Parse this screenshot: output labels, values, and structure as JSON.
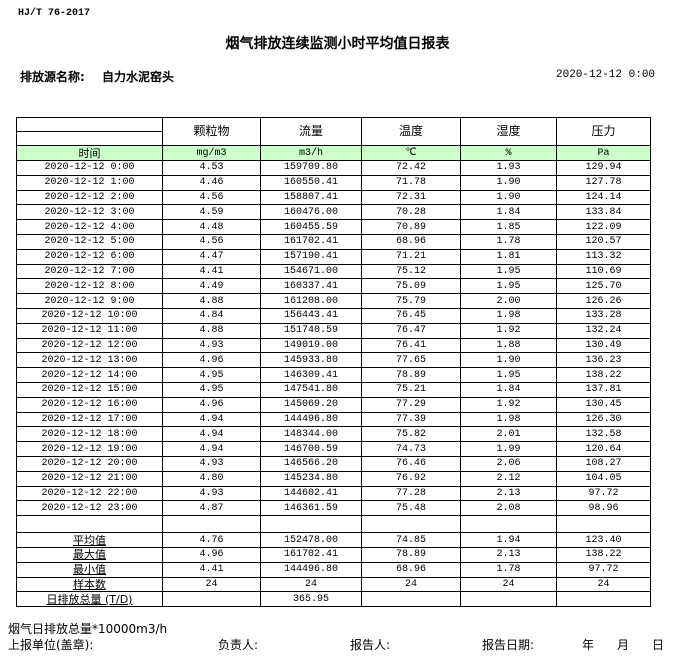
{
  "standard": "HJ/T  76-2017",
  "title": "烟气排放连续监测小时平均值日报表",
  "source_label": "排放源名称:",
  "source_value": "自力水泥窑头",
  "report_datetime": "2020-12-12 0:00",
  "columns": [
    {
      "name": "颗粒物",
      "unit": "mg/m3"
    },
    {
      "name": "流量",
      "unit": "m3/h"
    },
    {
      "name": "温度",
      "unit": "℃"
    },
    {
      "name": "湿度",
      "unit": "%"
    },
    {
      "name": "压力",
      "unit": "Pa"
    }
  ],
  "time_header": "时间",
  "rows": [
    [
      "2020-12-12 0:00",
      "4.53",
      "159709.80",
      "72.42",
      "1.93",
      "129.94"
    ],
    [
      "2020-12-12 1:00",
      "4.46",
      "160550.41",
      "71.78",
      "1.90",
      "127.78"
    ],
    [
      "2020-12-12 2:00",
      "4.56",
      "158807.41",
      "72.31",
      "1.90",
      "124.14"
    ],
    [
      "2020-12-12 3:00",
      "4.59",
      "160476.00",
      "70.28",
      "1.84",
      "133.84"
    ],
    [
      "2020-12-12 4:00",
      "4.48",
      "160455.59",
      "70.89",
      "1.85",
      "122.09"
    ],
    [
      "2020-12-12 5:00",
      "4.56",
      "161702.41",
      "68.96",
      "1.78",
      "120.57"
    ],
    [
      "2020-12-12 6:00",
      "4.47",
      "157190.41",
      "71.21",
      "1.81",
      "113.32"
    ],
    [
      "2020-12-12 7:00",
      "4.41",
      "154671.00",
      "75.12",
      "1.95",
      "110.69"
    ],
    [
      "2020-12-12 8:00",
      "4.49",
      "160337.41",
      "75.09",
      "1.95",
      "125.70"
    ],
    [
      "2020-12-12 9:00",
      "4.88",
      "161208.00",
      "75.79",
      "2.00",
      "126.26"
    ],
    [
      "2020-12-12 10:00",
      "4.84",
      "156443.41",
      "76.45",
      "1.98",
      "133.28"
    ],
    [
      "2020-12-12 11:00",
      "4.88",
      "151740.59",
      "76.47",
      "1.92",
      "132.24"
    ],
    [
      "2020-12-12 12:00",
      "4.93",
      "149019.00",
      "76.41",
      "1.88",
      "130.49"
    ],
    [
      "2020-12-12 13:00",
      "4.96",
      "145933.80",
      "77.65",
      "1.90",
      "136.23"
    ],
    [
      "2020-12-12 14:00",
      "4.95",
      "146309.41",
      "78.89",
      "1.95",
      "138.22"
    ],
    [
      "2020-12-12 15:00",
      "4.95",
      "147541.80",
      "75.21",
      "1.84",
      "137.81"
    ],
    [
      "2020-12-12 16:00",
      "4.96",
      "145069.20",
      "77.29",
      "1.92",
      "130.45"
    ],
    [
      "2020-12-12 17:00",
      "4.94",
      "144496.80",
      "77.39",
      "1.98",
      "126.30"
    ],
    [
      "2020-12-12 18:00",
      "4.94",
      "148344.00",
      "75.82",
      "2.01",
      "132.58"
    ],
    [
      "2020-12-12 19:00",
      "4.94",
      "146700.59",
      "74.73",
      "1.99",
      "120.64"
    ],
    [
      "2020-12-12 20:00",
      "4.93",
      "146566.20",
      "76.46",
      "2.06",
      "108.27"
    ],
    [
      "2020-12-12 21:00",
      "4.80",
      "145234.80",
      "76.92",
      "2.12",
      "104.05"
    ],
    [
      "2020-12-12 22:00",
      "4.93",
      "144602.41",
      "77.28",
      "2.13",
      "97.72"
    ],
    [
      "2020-12-12 23:00",
      "4.87",
      "146361.59",
      "75.48",
      "2.08",
      "98.96"
    ]
  ],
  "stats": [
    [
      "平均值",
      "4.76",
      "152478.00",
      "74.85",
      "1.94",
      "123.40"
    ],
    [
      "最大值",
      "4.96",
      "161702.41",
      "78.89",
      "2.13",
      "138.22"
    ],
    [
      "最小值",
      "4.41",
      "144496.80",
      "68.96",
      "1.78",
      "97.72"
    ],
    [
      "样本数",
      "24",
      "24",
      "24",
      "24",
      "24"
    ],
    [
      "日排放总量 (T/D)",
      "",
      "365.95",
      "",
      "",
      ""
    ]
  ],
  "footer": {
    "note": "烟气日排放总量*10000m3/h",
    "unit_label": "上报单位(盖章):",
    "responsible_label": "负责人:",
    "reporter_label": "报告人:",
    "report_date_label": "报告日期:",
    "year": "年",
    "month": "月",
    "day": "日"
  }
}
